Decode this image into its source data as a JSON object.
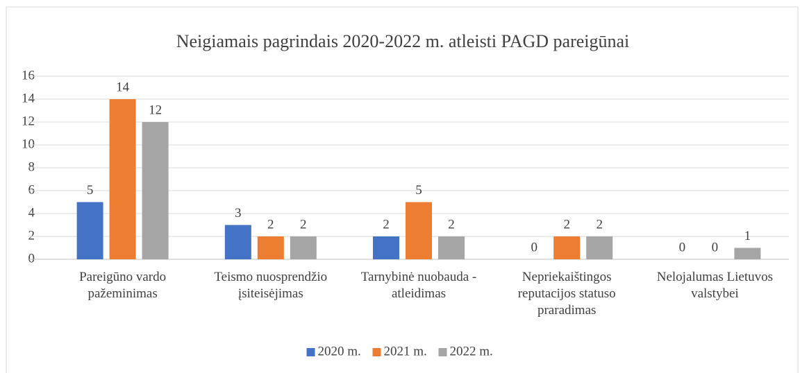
{
  "chart_data": {
    "type": "bar",
    "title": "Neigiamais pagrindais 2020-2022 m. atleisti PAGD pareigūnai",
    "categories": [
      "Pareigūno vardo pažeminimas",
      "Teismo nuosprendžio įsiteisėjimas",
      "Tarnybinė nuobauda - atleidimas",
      "Nepriekaištingos reputacijos statuso praradimas",
      "Nelojalumas Lietuvos valstybei"
    ],
    "series": [
      {
        "name": "2020 m.",
        "color": "#4472c4",
        "values": [
          5,
          3,
          2,
          0,
          0
        ]
      },
      {
        "name": "2021 m.",
        "color": "#ed7d31",
        "values": [
          14,
          2,
          5,
          2,
          0
        ]
      },
      {
        "name": "2022 m.",
        "color": "#a5a5a5",
        "values": [
          12,
          2,
          2,
          2,
          1
        ]
      }
    ],
    "ylim": [
      0,
      16
    ],
    "yticks": [
      0,
      2,
      4,
      6,
      8,
      10,
      12,
      14,
      16
    ],
    "grid": true,
    "legend": "bottom"
  }
}
